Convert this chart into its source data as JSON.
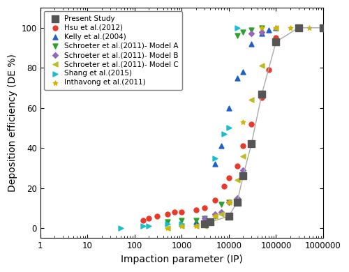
{
  "present_study": {
    "ip": [
      3000,
      4000,
      10000,
      15000,
      20000,
      30000,
      50000,
      100000,
      300000,
      1000000
    ],
    "de": [
      2,
      3,
      6,
      13,
      26,
      42,
      67,
      93,
      100,
      100
    ],
    "color": "#555555",
    "marker": "s",
    "label": "Present Study",
    "markersize": 7,
    "zorder": 10
  },
  "hsu2012": {
    "ip": [
      150,
      200,
      300,
      500,
      700,
      1000,
      2000,
      3000,
      5000,
      8000,
      10000,
      15000,
      20000,
      30000,
      50000,
      70000,
      100000
    ],
    "de": [
      4,
      5,
      6,
      7,
      8,
      8,
      9,
      10,
      14,
      21,
      25,
      31,
      41,
      52,
      65,
      79,
      95
    ],
    "color": "#e8392a",
    "marker": "o",
    "label": "Hsu et al.(2012)",
    "markersize": 5,
    "zorder": 5
  },
  "kelly2004": {
    "ip": [
      2000,
      3000,
      5000,
      7000,
      10000,
      15000,
      20000,
      30000,
      50000,
      70000,
      100000
    ],
    "de": [
      3,
      4,
      32,
      41,
      60,
      75,
      78,
      92,
      97,
      99,
      100
    ],
    "color": "#1f5fc9",
    "marker": "^",
    "label": "Kelly et al.(2004)",
    "markersize": 5,
    "zorder": 5
  },
  "schroeter2011A": {
    "ip": [
      500,
      1000,
      2000,
      3000,
      5000,
      7000,
      10000,
      15000,
      20000,
      30000,
      50000
    ],
    "de": [
      3,
      4,
      4,
      5,
      6,
      12,
      13,
      96,
      98,
      99,
      100
    ],
    "color": "#2ca02c",
    "marker": "v",
    "label": "Schroeter et al.(2011)- Model A",
    "markersize": 5,
    "zorder": 5
  },
  "schroeter2011B": {
    "ip": [
      3000,
      5000,
      7000,
      10000,
      15000,
      20000,
      30000,
      50000
    ],
    "de": [
      5,
      7,
      8,
      13,
      15,
      29,
      97,
      98
    ],
    "color": "#9467bd",
    "marker": "D",
    "label": "Schroeter et al.(2011)- Model B",
    "markersize": 4,
    "zorder": 5
  },
  "schroeter2011C": {
    "ip": [
      500,
      1000,
      2000,
      3000,
      5000,
      7000,
      10000,
      15000,
      20000,
      30000,
      50000,
      100000
    ],
    "de": [
      0,
      1,
      1,
      1,
      6,
      7,
      13,
      24,
      36,
      64,
      81,
      100
    ],
    "color": "#bcbd22",
    "marker": "<",
    "label": "Schroeter et al.(2011)- Model C",
    "markersize": 5,
    "zorder": 5
  },
  "shang2015": {
    "ip": [
      50,
      150,
      200,
      500,
      1000,
      3000,
      5000,
      8000,
      10000,
      15000
    ],
    "de": [
      0,
      1,
      1,
      2,
      2,
      2,
      35,
      47,
      50,
      100
    ],
    "color": "#17becf",
    "marker": ">",
    "label": "Shang et al.(2015)",
    "markersize": 5,
    "zorder": 5
  },
  "inthavong2011": {
    "ip": [
      500,
      1000,
      2000,
      5000,
      10000,
      20000,
      50000,
      100000,
      200000,
      500000,
      1000000
    ],
    "de": [
      0,
      1,
      1,
      6,
      13,
      53,
      100,
      100,
      100,
      100,
      100
    ],
    "color": "#d4b400",
    "marker": "*",
    "label": "Inthavong et al.(2011)",
    "markersize": 5,
    "zorder": 5
  },
  "xlabel": "Impaction parameter (IP)",
  "ylabel": "Deposition efficiency (DE %)",
  "xlim": [
    1,
    1000000
  ],
  "ylim": [
    -5,
    110
  ],
  "yticks": [
    0,
    20,
    40,
    60,
    80,
    100
  ],
  "background_color": "#ffffff",
  "legend_fontsize": 7.5,
  "axis_fontsize": 10,
  "tick_fontsize": 8.5
}
